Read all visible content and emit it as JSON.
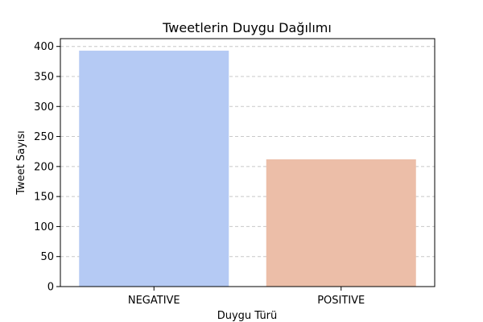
{
  "chart_data": {
    "type": "bar",
    "title": "Tweetlerin Duygu Dağılımı",
    "xlabel": "Duygu Türü",
    "ylabel": "Tweet Sayısı",
    "categories": [
      "NEGATIVE",
      "POSITIVE"
    ],
    "values": [
      393,
      212
    ],
    "colors": [
      "#b5caf4",
      "#ecbea8"
    ],
    "ylim": [
      0,
      413
    ],
    "yticks": [
      0,
      50,
      100,
      150,
      200,
      250,
      300,
      350,
      400
    ],
    "grid": "y-dashed",
    "legend": "none"
  }
}
